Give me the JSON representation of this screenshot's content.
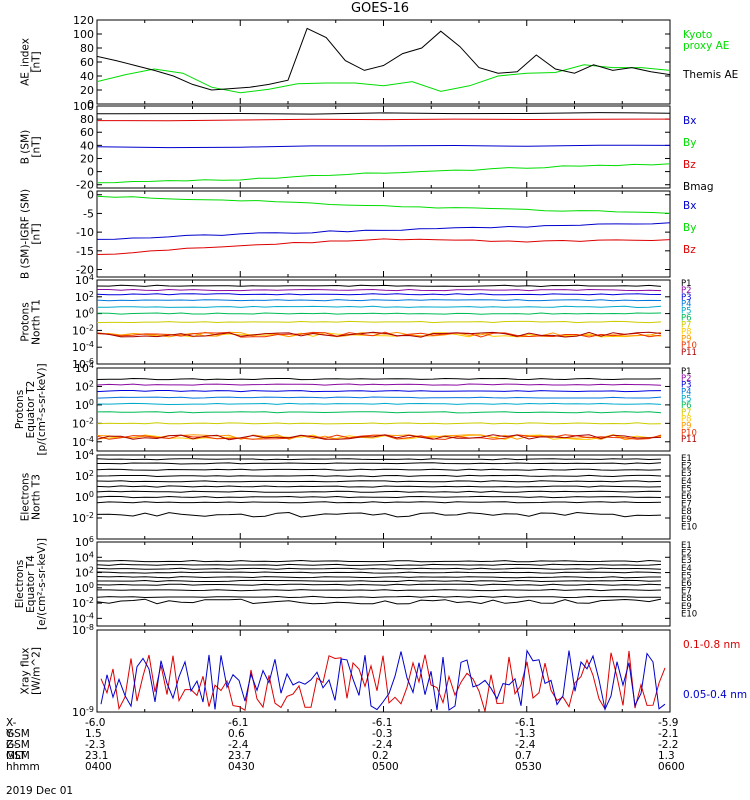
{
  "title": "GOES-16",
  "date_label": "2019 Dec 01",
  "colors": {
    "black": "#000000",
    "green": "#00dd00",
    "blue": "#0000cc",
    "red": "#dd0000",
    "P1": "#000000",
    "P2": "#8a0aa0",
    "P3": "#0000dd",
    "P4": "#0077dd",
    "P5": "#00aacc",
    "P6": "#00bb55",
    "P7": "#cccc00",
    "P8": "#ffcc00",
    "P9": "#ff9900",
    "P10": "#ee3300",
    "P11": "#aa0000"
  },
  "ephemeris": {
    "rows": [
      {
        "label": "X-GSM",
        "values": [
          "-6.0",
          "-6.1",
          "-6.1",
          "-6.1",
          "-5.9"
        ]
      },
      {
        "label": "Y-GSM",
        "values": [
          "1.5",
          "0.6",
          "-0.3",
          "-1.3",
          "-2.1"
        ]
      },
      {
        "label": "Z-GSM",
        "values": [
          "-2.3",
          "-2.4",
          "-2.4",
          "-2.4",
          "-2.2"
        ]
      },
      {
        "label": "MLT",
        "values": [
          "23.1",
          "23.7",
          "0.2",
          "0.7",
          "1.3"
        ]
      },
      {
        "label": "hhmm",
        "values": [
          "0400",
          "0430",
          "0500",
          "0530",
          "0600"
        ]
      }
    ]
  },
  "chart_data": [
    {
      "type": "line",
      "ylabel": "AE_index\n[nT]",
      "ylim": [
        0,
        120
      ],
      "yscale": "linear",
      "yticks": [
        "0",
        "20",
        "40",
        "60",
        "80",
        "100",
        "120"
      ],
      "xlim": [
        "04:00",
        "06:00"
      ],
      "series": [
        {
          "name": "Kyoto\nproxy AE",
          "color": "green",
          "x": [
            "04:00",
            "04:06",
            "04:12",
            "04:18",
            "04:24",
            "04:30",
            "04:36",
            "04:42",
            "04:48",
            "04:54",
            "05:00",
            "05:06",
            "05:12",
            "05:18",
            "05:24",
            "05:30",
            "05:36",
            "05:42",
            "05:48",
            "05:54",
            "06:00"
          ],
          "values": [
            32,
            42,
            50,
            44,
            24,
            16,
            21,
            29,
            30,
            30,
            26,
            32,
            18,
            26,
            40,
            44,
            45,
            56,
            52,
            52,
            48
          ]
        },
        {
          "name": "Themis AE",
          "color": "black",
          "x": [
            "04:00",
            "04:04",
            "04:08",
            "04:12",
            "04:16",
            "04:20",
            "04:24",
            "04:28",
            "04:32",
            "04:36",
            "04:40",
            "04:44",
            "04:48",
            "04:52",
            "04:56",
            "05:00",
            "05:04",
            "05:08",
            "05:12",
            "05:16",
            "05:20",
            "05:24",
            "05:28",
            "05:32",
            "05:36",
            "05:40",
            "05:44",
            "05:48",
            "05:52",
            "05:56",
            "06:00"
          ],
          "values": [
            68,
            62,
            55,
            48,
            40,
            28,
            20,
            22,
            24,
            28,
            34,
            108,
            95,
            62,
            48,
            55,
            72,
            80,
            104,
            82,
            52,
            44,
            46,
            70,
            50,
            44,
            56,
            48,
            52,
            46,
            42
          ]
        }
      ]
    },
    {
      "type": "line",
      "ylabel": "B (SM)\n[nT]",
      "ylim": [
        -25,
        100
      ],
      "yscale": "linear",
      "yticks": [
        "-20",
        "0",
        "20",
        "40",
        "60",
        "80",
        "100"
      ],
      "series": [
        {
          "name": "Bx",
          "color": "blue",
          "x": [
            "04:00",
            "06:00"
          ],
          "values": [
            37,
            40
          ]
        },
        {
          "name": "By",
          "color": "green",
          "x": [
            "04:00",
            "04:30",
            "05:00",
            "05:30",
            "06:00"
          ],
          "values": [
            -17,
            -12,
            -2,
            6,
            12
          ]
        },
        {
          "name": "Bz",
          "color": "red",
          "x": [
            "04:00",
            "06:00"
          ],
          "values": [
            78,
            80
          ]
        },
        {
          "name": "Bmag",
          "color": "black",
          "x": [
            "04:00",
            "06:00"
          ],
          "values": [
            88,
            89
          ]
        }
      ]
    },
    {
      "type": "line",
      "ylabel": "B (SM)-IGRF (SM)\n[nT]",
      "ylim": [
        -22,
        1
      ],
      "yscale": "linear",
      "yticks": [
        "-20",
        "-15",
        "-10",
        "-5",
        "0"
      ],
      "series": [
        {
          "name": "Bx",
          "color": "blue",
          "x": [
            "04:00",
            "04:30",
            "05:00",
            "05:30",
            "06:00"
          ],
          "values": [
            -12,
            -10.5,
            -9.5,
            -8.5,
            -7.5
          ]
        },
        {
          "name": "By",
          "color": "green",
          "x": [
            "04:00",
            "04:30",
            "05:00",
            "05:30",
            "06:00"
          ],
          "values": [
            -0.5,
            -1.5,
            -3,
            -4,
            -5
          ]
        },
        {
          "name": "Bz",
          "color": "red",
          "x": [
            "04:00",
            "04:30",
            "05:00",
            "05:30",
            "06:00"
          ],
          "values": [
            -16,
            -13.5,
            -12,
            -12.5,
            -12
          ]
        }
      ]
    },
    {
      "type": "line",
      "ylabel": "Protons\nNorth T1",
      "ylim": [
        -6,
        4
      ],
      "yscale": "log10",
      "yticks": [
        "10^-6",
        "10^-4",
        "10^-2",
        "10^0",
        "10^2",
        "10^4"
      ],
      "series": [
        {
          "name": "P1",
          "values": [
            3.3
          ]
        },
        {
          "name": "P2",
          "values": [
            2.8
          ]
        },
        {
          "name": "P3",
          "values": [
            2.3
          ]
        },
        {
          "name": "P4",
          "values": [
            1.6
          ]
        },
        {
          "name": "P5",
          "values": [
            0.8
          ]
        },
        {
          "name": "P6",
          "values": [
            0
          ]
        },
        {
          "name": "P7",
          "values": [
            -1.0
          ]
        },
        {
          "name": "P8",
          "values": [
            -2.5
          ]
        },
        {
          "name": "P9",
          "values": [
            -2.5
          ]
        },
        {
          "name": "P10",
          "values": [
            -2.5
          ]
        },
        {
          "name": "P11",
          "values": [
            -2.5
          ]
        }
      ]
    },
    {
      "type": "line",
      "ylabel": "Protons\nEquator T2\n[p/(cm²-s-sr-keV)]",
      "ylim": [
        -5,
        4
      ],
      "yscale": "log10",
      "yticks": [
        "10^-4",
        "10^-2",
        "10^0",
        "10^2",
        "10^4"
      ],
      "series": [
        {
          "name": "P1",
          "values": [
            2.8
          ]
        },
        {
          "name": "P2",
          "values": [
            2.2
          ]
        },
        {
          "name": "P3",
          "values": [
            1.5
          ]
        },
        {
          "name": "P4",
          "values": [
            0.8
          ]
        },
        {
          "name": "P5",
          "values": [
            0.1
          ]
        },
        {
          "name": "P6",
          "values": [
            -0.8
          ]
        },
        {
          "name": "P7",
          "values": [
            -2.0
          ]
        },
        {
          "name": "P8",
          "values": [
            -3.5
          ]
        },
        {
          "name": "P9",
          "values": [
            -3.5
          ]
        },
        {
          "name": "P10",
          "values": [
            -3.5
          ]
        },
        {
          "name": "P11",
          "values": [
            -3.5
          ]
        }
      ]
    },
    {
      "type": "line",
      "ylabel": "Electrons\nNorth T3",
      "ylim": [
        -4,
        4
      ],
      "yscale": "log10",
      "yticks": [
        "10^-2",
        "10^0",
        "10^2",
        "10^4"
      ],
      "series": [
        {
          "name": "E1",
          "values": [
            3.6
          ]
        },
        {
          "name": "E2",
          "values": [
            3.2
          ]
        },
        {
          "name": "E3",
          "values": [
            2.6
          ]
        },
        {
          "name": "E4",
          "values": [
            2.0
          ]
        },
        {
          "name": "E5",
          "values": [
            1.5
          ]
        },
        {
          "name": "E6",
          "values": [
            1.0
          ]
        },
        {
          "name": "E7",
          "values": [
            0.5
          ]
        },
        {
          "name": "E8",
          "values": [
            0
          ]
        },
        {
          "name": "E9",
          "values": [
            -0.5
          ]
        },
        {
          "name": "E10",
          "values": [
            -1.7
          ]
        }
      ]
    },
    {
      "type": "line",
      "ylabel": "Electrons\nEquator T4\n[e/(cm²-s-sr-keV)]",
      "ylim": [
        -5,
        6
      ],
      "yscale": "log10",
      "yticks": [
        "10^-4",
        "10^-2",
        "10^0",
        "10^2",
        "10^4",
        "10^6"
      ],
      "series": [
        {
          "name": "E1",
          "values": [
            3.5
          ]
        },
        {
          "name": "E2",
          "values": [
            3.0
          ]
        },
        {
          "name": "E3",
          "values": [
            2.5
          ]
        },
        {
          "name": "E4",
          "values": [
            2.0
          ]
        },
        {
          "name": "E5",
          "values": [
            1.4
          ]
        },
        {
          "name": "E6",
          "values": [
            0.9
          ]
        },
        {
          "name": "E7",
          "values": [
            0.4
          ]
        },
        {
          "name": "E8",
          "values": [
            -0.3
          ]
        },
        {
          "name": "E9",
          "values": [
            -1.2
          ]
        },
        {
          "name": "E10",
          "values": [
            -1.8
          ]
        }
      ]
    },
    {
      "type": "line",
      "ylabel": "Xray flux\n[W/m^2]",
      "ylim": [
        -9,
        -8
      ],
      "yscale": "log10",
      "yticks": [
        "10^-9",
        "10^-8"
      ],
      "series": [
        {
          "name": "0.1-0.8 nm",
          "color": "red"
        },
        {
          "name": "0.05-0.4 nm",
          "color": "blue"
        }
      ]
    }
  ]
}
